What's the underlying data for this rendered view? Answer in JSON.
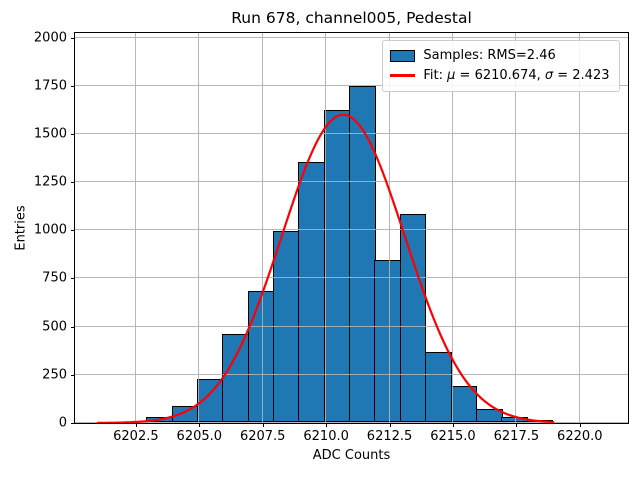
{
  "chart_data": {
    "type": "bar",
    "subtype": "histogram-with-gaussian-fit",
    "title": "Run 678, channel005, Pedestal",
    "xlabel": "ADC Counts",
    "ylabel": "Entries",
    "xlim": [
      6200.1,
      6221.9
    ],
    "ylim": [
      0,
      2024
    ],
    "x_tick_values": [
      6202.5,
      6205.0,
      6207.5,
      6210.0,
      6212.5,
      6215.0,
      6217.5,
      6220.0
    ],
    "x_tick_labels": [
      "6202.5",
      "6205.0",
      "6207.5",
      "6210.0",
      "6212.5",
      "6215.0",
      "6217.5",
      "6220.0"
    ],
    "y_tick_values": [
      0,
      250,
      500,
      750,
      1000,
      1250,
      1500,
      1750,
      2000
    ],
    "y_tick_labels": [
      "0",
      "250",
      "500",
      "750",
      "1000",
      "1250",
      "1500",
      "1750",
      "2000"
    ],
    "grid": true,
    "grid_color": "#b0b0b0",
    "legend_position": "upper right",
    "bins": {
      "start": 6202.95,
      "width": 1.0,
      "counts": [
        28,
        88,
        225,
        460,
        680,
        995,
        1350,
        1620,
        1745,
        845,
        1080,
        368,
        188,
        68,
        30,
        13
      ]
    },
    "series": [
      {
        "name": "Samples: RMS=2.46",
        "type": "histogram",
        "fill_color": "#1f77b4",
        "edge_color": "#000000"
      },
      {
        "name": "Fit: μ = 6210.674, σ = 2.423",
        "type": "gaussian-curve",
        "color": "#ff0000",
        "mu": 6210.674,
        "sigma": 2.423,
        "amplitude": 1600,
        "x_start": 6201.0,
        "x_end": 6218.95
      }
    ]
  },
  "legend": {
    "samples_label": "Samples: RMS=2.46",
    "fit_label": "Fit: μ = 6210.674, σ = 2.423",
    "fit_label_parts": [
      {
        "text": "Fit: ",
        "italic": false
      },
      {
        "text": "μ",
        "italic": true
      },
      {
        "text": " = 6210.674, ",
        "italic": false
      },
      {
        "text": "σ",
        "italic": true
      },
      {
        "text": " = 2.423",
        "italic": false
      }
    ]
  },
  "stats": {
    "rms": 2.46,
    "fit_mu": 6210.674,
    "fit_sigma": 2.423
  }
}
